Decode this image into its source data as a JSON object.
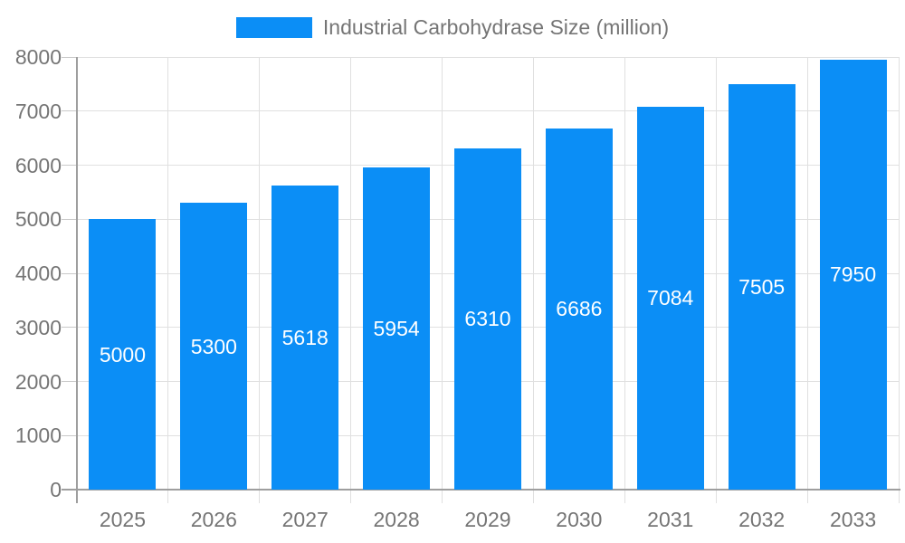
{
  "legend": {
    "label": "Industrial Carbohydrase Size (million)"
  },
  "chart_data": {
    "type": "bar",
    "title": "Industrial Carbohydrase Size (million)",
    "categories": [
      "2025",
      "2026",
      "2027",
      "2028",
      "2029",
      "2030",
      "2031",
      "2032",
      "2033"
    ],
    "values": [
      5000,
      5300,
      5618,
      5954,
      6310,
      6686,
      7084,
      7505,
      7950
    ],
    "bar_labels": [
      "5000",
      "5300",
      "5618",
      "5954",
      "6310",
      "6686",
      "7084",
      "7505",
      "7950"
    ],
    "xlabel": "",
    "ylabel": "",
    "ylim": [
      0,
      8000
    ],
    "yticks": [
      0,
      1000,
      2000,
      3000,
      4000,
      5000,
      6000,
      7000,
      8000
    ],
    "grid": true,
    "legend_position": "top-center",
    "bar_label_position": "inside-center"
  },
  "colors": {
    "bar": "#0b8ef6",
    "grid": "#e0e0e0",
    "tick": "#c9c9c9",
    "axis_line": "#9e9e9e",
    "axis_text": "#757575",
    "bar_label": "#ffffff",
    "legend_text": "#757575",
    "background": "#ffffff"
  }
}
